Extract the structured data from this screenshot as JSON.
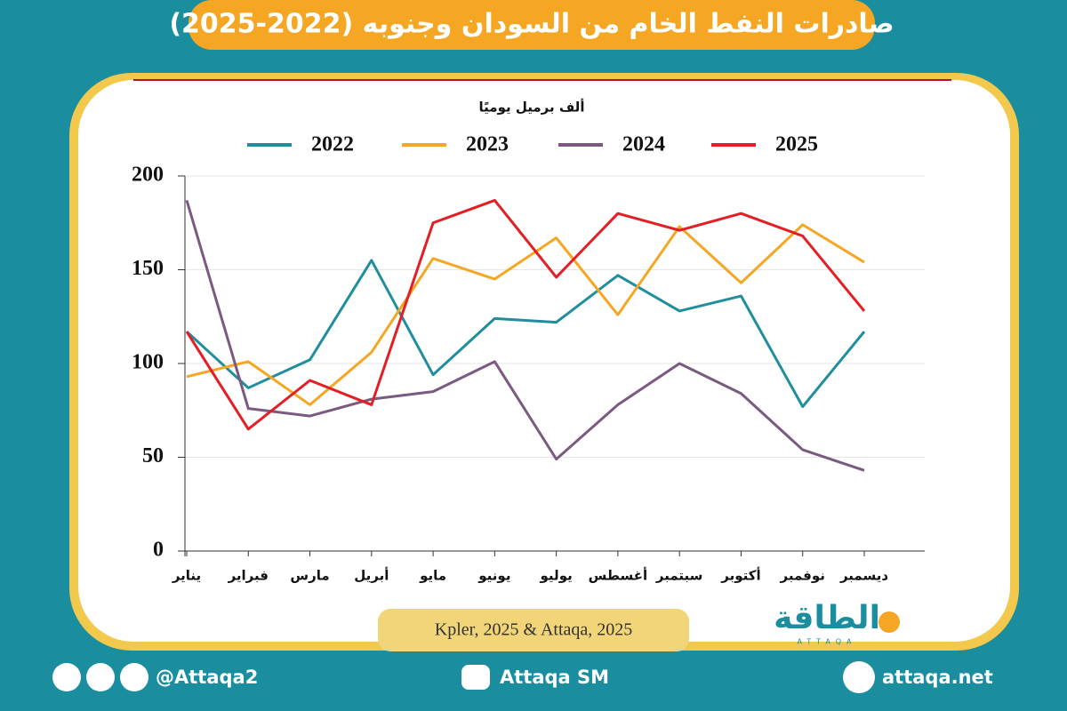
{
  "chart_data": {
    "type": "line",
    "title": "صادرات النفط الخام من السودان وجنوبه (2022-2025)",
    "y_label": "ألف برميل يوميًا",
    "categories": [
      "يناير",
      "فبراير",
      "مارس",
      "أبريل",
      "مايو",
      "يونيو",
      "يوليو",
      "أغسطس",
      "سبتمبر",
      "أكتوبر",
      "نوفمبر",
      "ديسمبر"
    ],
    "series": [
      {
        "name": "2022",
        "color": "#1f8f9d",
        "values": [
          117,
          87,
          102,
          155,
          94,
          124,
          122,
          147,
          128,
          136,
          77,
          117
        ]
      },
      {
        "name": "2023",
        "color": "#f5a623",
        "values": [
          93,
          101,
          78,
          106,
          156,
          145,
          167,
          126,
          173,
          143,
          174,
          154
        ]
      },
      {
        "name": "2024",
        "color": "#7a5a80",
        "values": [
          187,
          76,
          72,
          81,
          85,
          101,
          49,
          78,
          100,
          84,
          54,
          43
        ]
      },
      {
        "name": "2025",
        "color": "#e31e24",
        "values": [
          117,
          65,
          91,
          78,
          175,
          187,
          146,
          180,
          171,
          180,
          168,
          128
        ]
      }
    ],
    "ylim": [
      0,
      200
    ],
    "yticks": [
      0,
      50,
      100,
      150,
      200
    ],
    "grid": true,
    "source": "Kpler, 2025 & Attaqa, 2025"
  },
  "logo": {
    "name": "الطاقة",
    "latin": "ATTAQA"
  },
  "footer": {
    "social": "@Attaqa2",
    "youtube": "Attaqa SM",
    "website": "attaqa.net"
  }
}
